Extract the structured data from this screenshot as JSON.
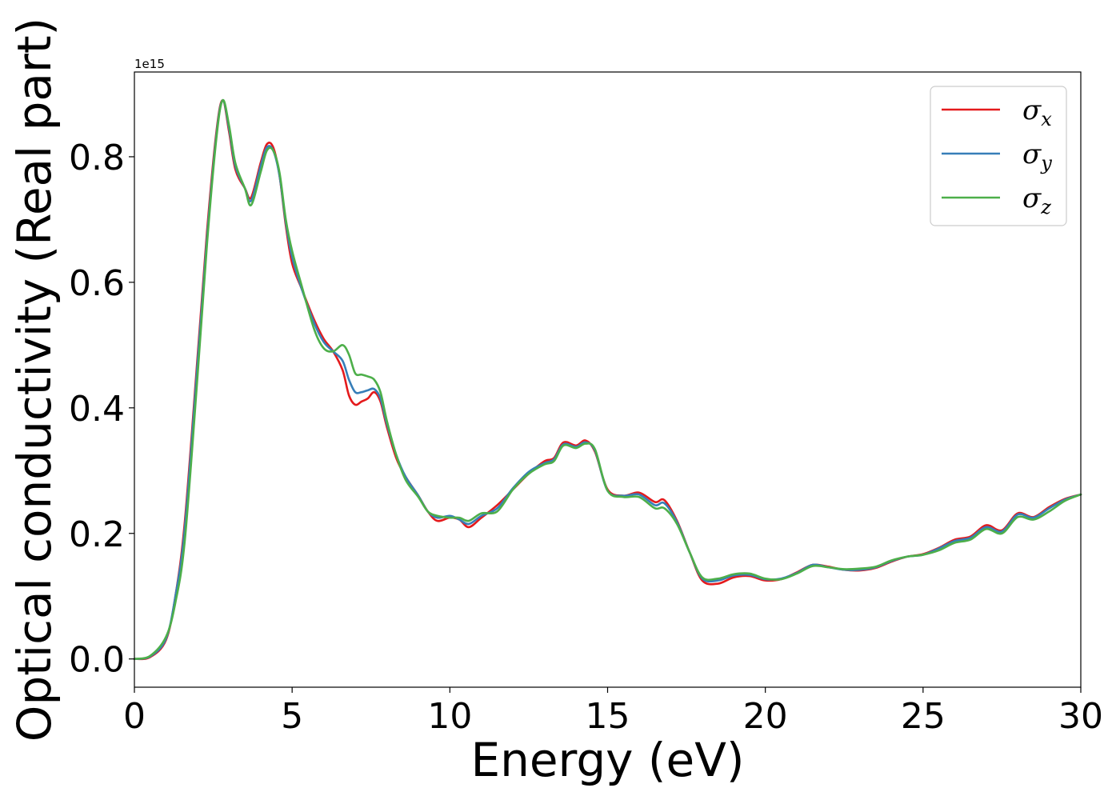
{
  "chart_data": {
    "type": "line",
    "xlabel": "Energy (eV)",
    "ylabel": "Optical conductivity (Real part)",
    "y_offset_label": "1e15",
    "xlim": [
      0,
      30
    ],
    "ylim": [
      -0.045,
      0.935
    ],
    "xticks": [
      0,
      5,
      10,
      15,
      20,
      25,
      30
    ],
    "xtick_labels": [
      "0",
      "5",
      "10",
      "15",
      "20",
      "25",
      "30"
    ],
    "yticks": [
      0.0,
      0.2,
      0.4,
      0.6,
      0.8
    ],
    "ytick_labels": [
      "0.0",
      "0.2",
      "0.4",
      "0.6",
      "0.8"
    ],
    "grid": false,
    "legend_position": "top-right",
    "series": [
      {
        "name": "σx",
        "symbol": "σ",
        "subscript": "x",
        "color": "#e41a1c",
        "x": [
          0,
          0.5,
          1.0,
          1.3,
          1.6,
          2.0,
          2.3,
          2.6,
          2.8,
          3.0,
          3.2,
          3.5,
          3.7,
          4.0,
          4.2,
          4.4,
          4.6,
          4.8,
          5.0,
          5.3,
          5.7,
          6.0,
          6.3,
          6.6,
          6.8,
          7.0,
          7.2,
          7.4,
          7.6,
          7.8,
          8.0,
          8.3,
          8.6,
          9.0,
          9.3,
          9.6,
          10.0,
          10.3,
          10.6,
          11.0,
          11.5,
          12.0,
          12.5,
          13.0,
          13.3,
          13.6,
          14.0,
          14.3,
          14.6,
          15.0,
          15.5,
          16.0,
          16.5,
          16.8,
          17.2,
          17.6,
          18.0,
          18.5,
          19.0,
          19.5,
          20.0,
          20.5,
          21.0,
          21.5,
          22.0,
          22.5,
          23.0,
          23.5,
          24.0,
          24.5,
          25.0,
          25.5,
          26.0,
          26.5,
          27.0,
          27.5,
          28.0,
          28.5,
          29.0,
          29.5,
          30.0
        ],
        "y": [
          0.0,
          0.003,
          0.03,
          0.1,
          0.22,
          0.48,
          0.68,
          0.84,
          0.89,
          0.84,
          0.78,
          0.75,
          0.735,
          0.79,
          0.82,
          0.815,
          0.77,
          0.69,
          0.63,
          0.59,
          0.54,
          0.51,
          0.49,
          0.46,
          0.42,
          0.405,
          0.41,
          0.415,
          0.425,
          0.41,
          0.37,
          0.32,
          0.29,
          0.26,
          0.235,
          0.22,
          0.225,
          0.222,
          0.21,
          0.225,
          0.245,
          0.27,
          0.295,
          0.315,
          0.32,
          0.345,
          0.34,
          0.348,
          0.33,
          0.27,
          0.26,
          0.265,
          0.25,
          0.253,
          0.22,
          0.17,
          0.125,
          0.12,
          0.13,
          0.132,
          0.125,
          0.127,
          0.138,
          0.15,
          0.147,
          0.142,
          0.141,
          0.145,
          0.155,
          0.163,
          0.167,
          0.177,
          0.19,
          0.195,
          0.213,
          0.205,
          0.232,
          0.226,
          0.242,
          0.255,
          0.262
        ]
      },
      {
        "name": "σy",
        "symbol": "σ",
        "subscript": "y",
        "color": "#377eb8",
        "x": [
          0,
          0.5,
          1.0,
          1.3,
          1.6,
          2.0,
          2.3,
          2.6,
          2.8,
          3.0,
          3.2,
          3.5,
          3.7,
          4.0,
          4.2,
          4.4,
          4.6,
          4.8,
          5.0,
          5.3,
          5.7,
          6.0,
          6.3,
          6.6,
          6.8,
          7.0,
          7.2,
          7.4,
          7.6,
          7.8,
          8.0,
          8.3,
          8.6,
          9.0,
          9.3,
          9.6,
          10.0,
          10.3,
          10.6,
          11.0,
          11.5,
          12.0,
          12.5,
          13.0,
          13.3,
          13.6,
          14.0,
          14.3,
          14.6,
          15.0,
          15.5,
          16.0,
          16.5,
          16.8,
          17.2,
          17.6,
          18.0,
          18.5,
          19.0,
          19.5,
          20.0,
          20.5,
          21.0,
          21.5,
          22.0,
          22.5,
          23.0,
          23.5,
          24.0,
          24.5,
          25.0,
          25.5,
          26.0,
          26.5,
          27.0,
          27.5,
          28.0,
          28.5,
          29.0,
          29.5,
          30.0
        ],
        "y": [
          0.0,
          0.004,
          0.032,
          0.1,
          0.21,
          0.47,
          0.67,
          0.835,
          0.89,
          0.845,
          0.785,
          0.75,
          0.73,
          0.785,
          0.815,
          0.81,
          0.77,
          0.695,
          0.64,
          0.59,
          0.535,
          0.505,
          0.49,
          0.475,
          0.445,
          0.425,
          0.425,
          0.428,
          0.43,
          0.415,
          0.375,
          0.325,
          0.29,
          0.26,
          0.235,
          0.225,
          0.228,
          0.222,
          0.215,
          0.228,
          0.24,
          0.272,
          0.298,
          0.312,
          0.318,
          0.342,
          0.338,
          0.345,
          0.332,
          0.268,
          0.26,
          0.262,
          0.245,
          0.248,
          0.218,
          0.17,
          0.128,
          0.125,
          0.133,
          0.134,
          0.127,
          0.128,
          0.137,
          0.15,
          0.146,
          0.142,
          0.142,
          0.146,
          0.156,
          0.163,
          0.166,
          0.176,
          0.188,
          0.193,
          0.21,
          0.203,
          0.23,
          0.225,
          0.24,
          0.254,
          0.262
        ]
      },
      {
        "name": "σz",
        "symbol": "σ",
        "subscript": "z",
        "color": "#4daf4a",
        "x": [
          0,
          0.5,
          1.0,
          1.3,
          1.6,
          2.0,
          2.3,
          2.6,
          2.8,
          3.0,
          3.2,
          3.5,
          3.7,
          4.0,
          4.2,
          4.4,
          4.6,
          4.8,
          5.0,
          5.3,
          5.7,
          6.0,
          6.3,
          6.6,
          6.8,
          7.0,
          7.2,
          7.4,
          7.6,
          7.8,
          8.0,
          8.3,
          8.6,
          9.0,
          9.3,
          9.6,
          10.0,
          10.3,
          10.6,
          11.0,
          11.5,
          12.0,
          12.5,
          13.0,
          13.3,
          13.6,
          14.0,
          14.3,
          14.6,
          15.0,
          15.5,
          16.0,
          16.5,
          16.8,
          17.2,
          17.6,
          18.0,
          18.5,
          19.0,
          19.5,
          20.0,
          20.5,
          21.0,
          21.5,
          22.0,
          22.5,
          23.0,
          23.5,
          24.0,
          24.5,
          25.0,
          25.5,
          26.0,
          26.5,
          27.0,
          27.5,
          28.0,
          28.5,
          29.0,
          29.5,
          30.0
        ],
        "y": [
          0.0,
          0.005,
          0.035,
          0.09,
          0.19,
          0.45,
          0.66,
          0.83,
          0.89,
          0.85,
          0.79,
          0.75,
          0.723,
          0.775,
          0.81,
          0.81,
          0.775,
          0.7,
          0.65,
          0.595,
          0.525,
          0.495,
          0.49,
          0.5,
          0.485,
          0.455,
          0.453,
          0.45,
          0.445,
          0.425,
          0.38,
          0.325,
          0.285,
          0.258,
          0.235,
          0.228,
          0.225,
          0.225,
          0.22,
          0.232,
          0.235,
          0.27,
          0.295,
          0.31,
          0.315,
          0.34,
          0.336,
          0.343,
          0.334,
          0.268,
          0.258,
          0.258,
          0.24,
          0.24,
          0.215,
          0.17,
          0.13,
          0.128,
          0.135,
          0.136,
          0.128,
          0.127,
          0.136,
          0.148,
          0.146,
          0.143,
          0.144,
          0.147,
          0.157,
          0.163,
          0.166,
          0.173,
          0.185,
          0.19,
          0.207,
          0.2,
          0.226,
          0.222,
          0.235,
          0.252,
          0.262
        ]
      }
    ]
  }
}
